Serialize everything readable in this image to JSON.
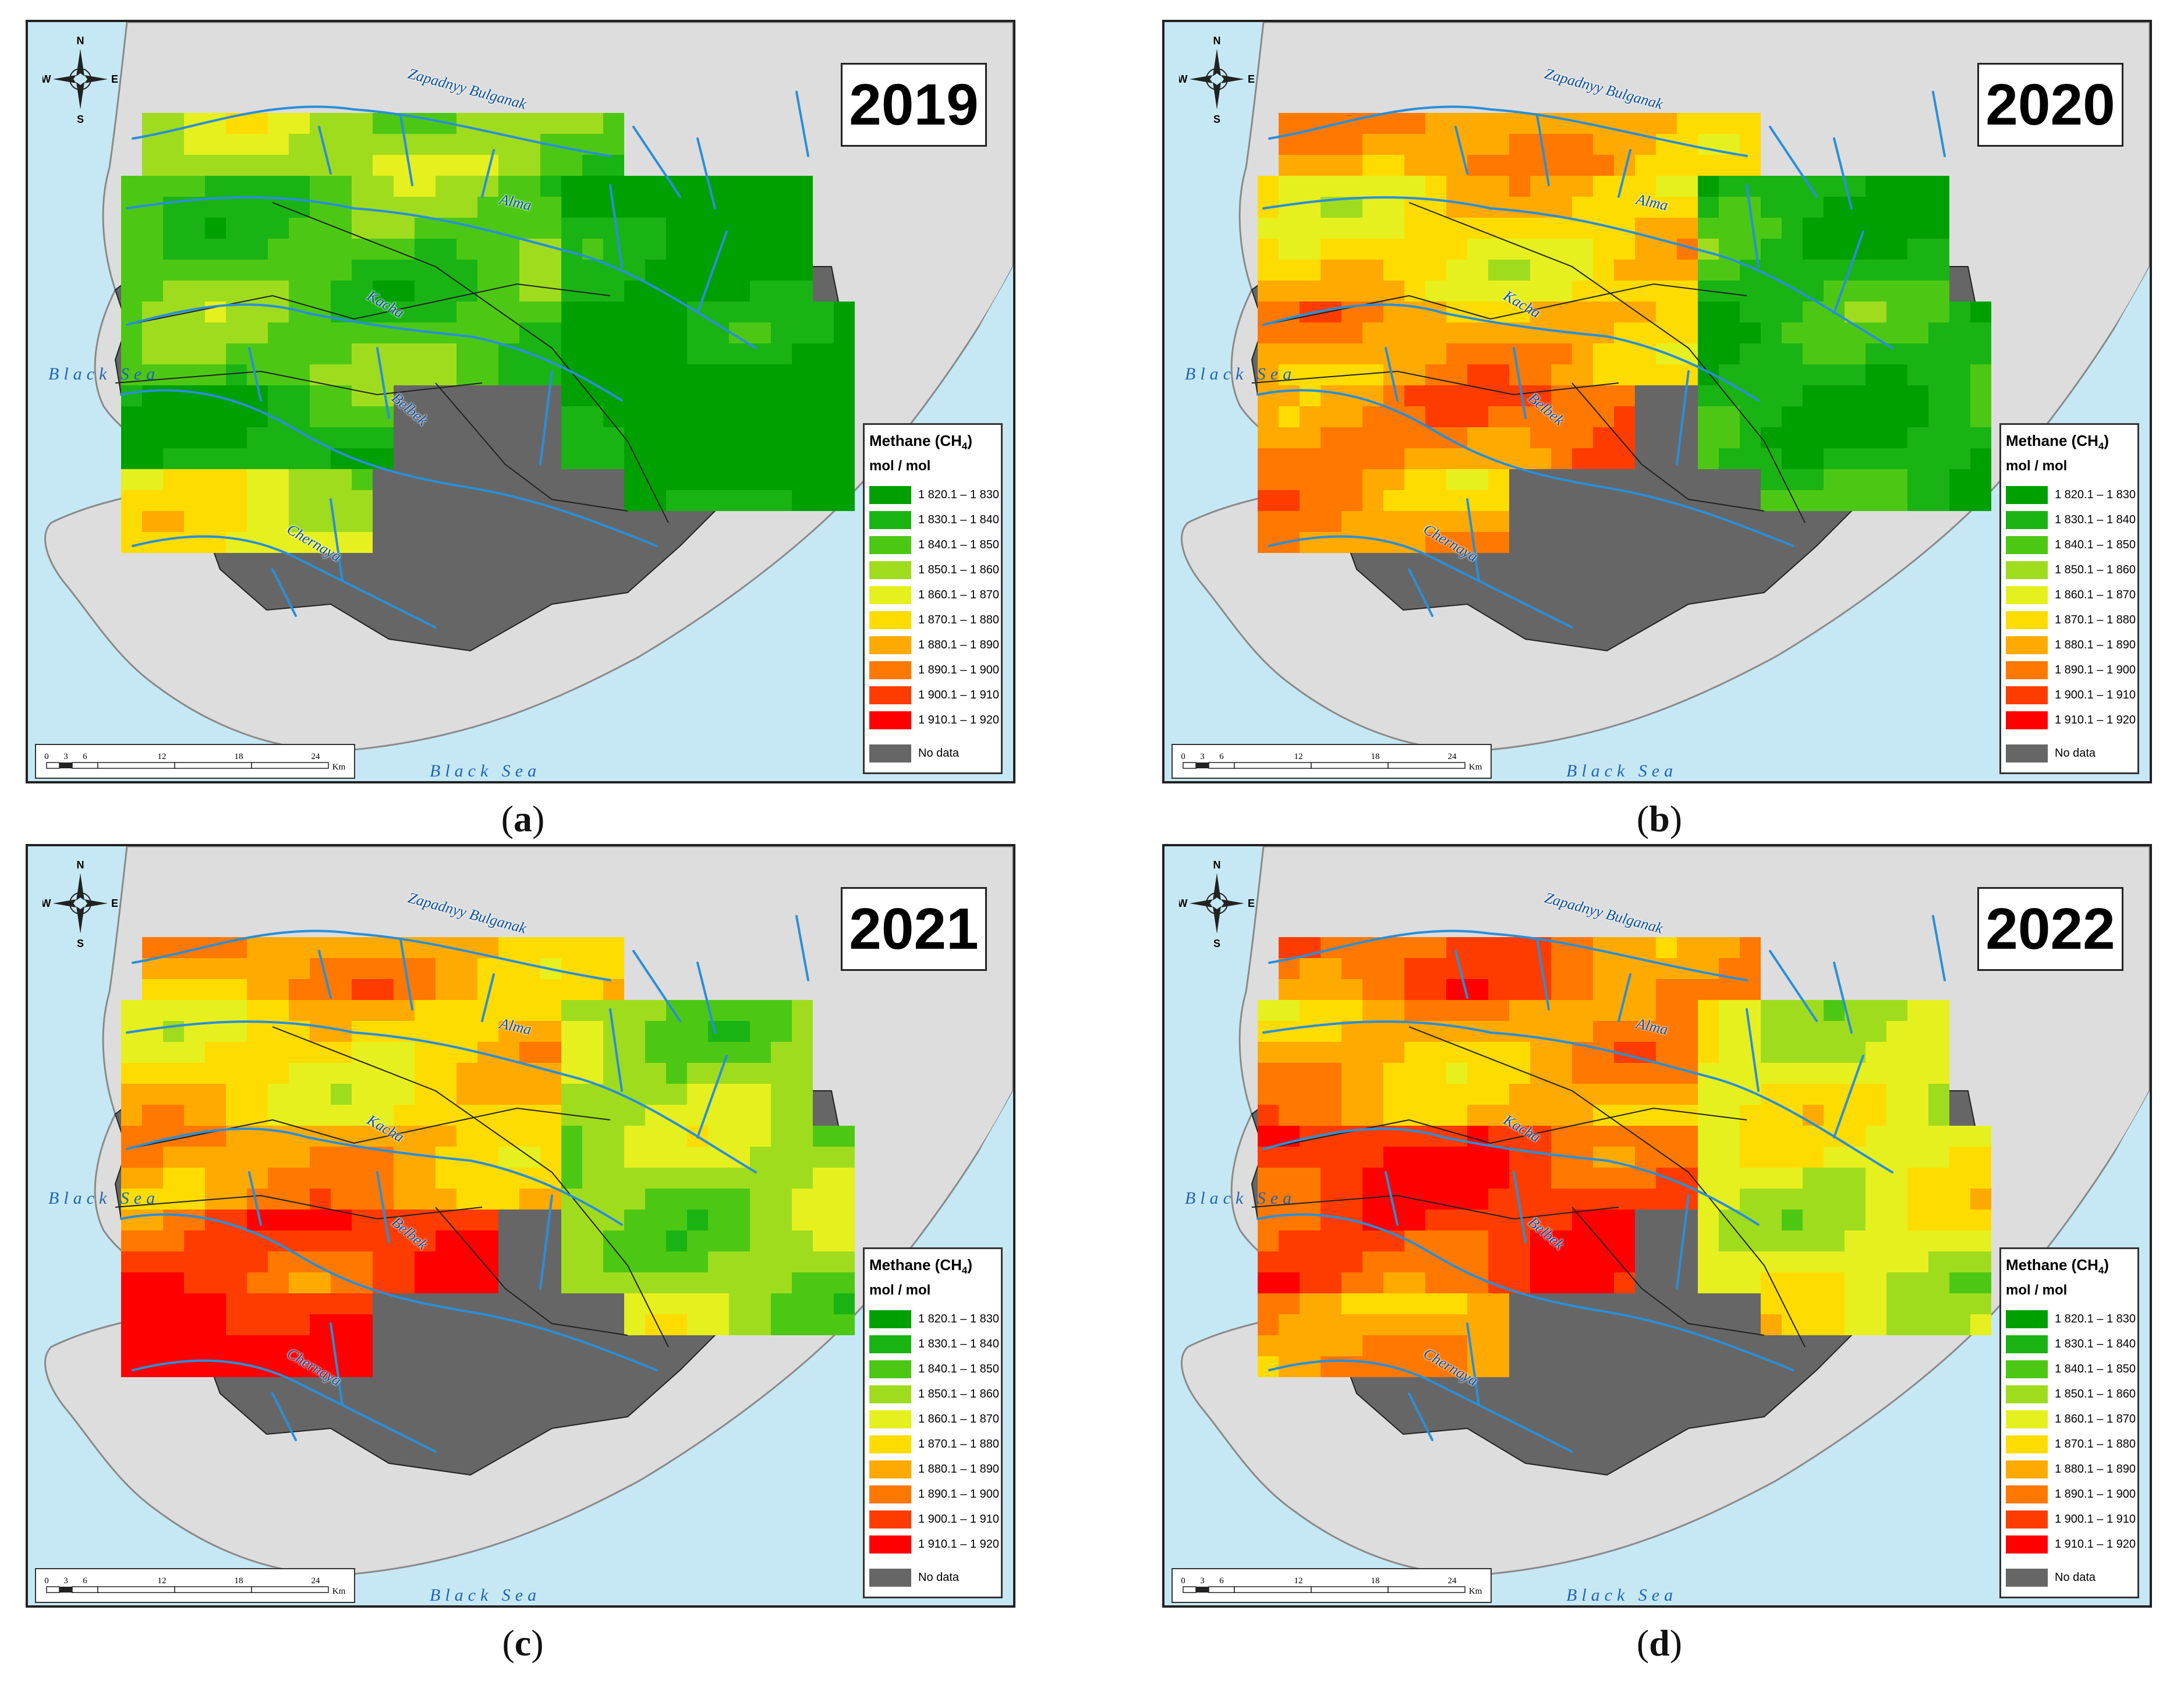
{
  "panels": [
    {
      "year": "2019",
      "caption": "a"
    },
    {
      "year": "2020",
      "caption": "b"
    },
    {
      "year": "2021",
      "caption": "c"
    },
    {
      "year": "2022",
      "caption": "d"
    }
  ],
  "legend": {
    "title": "Methane (CH",
    "title_sub": "4",
    "title_end": ")",
    "unit": "mol / mol",
    "classes": [
      {
        "label": "1 820.1 – 1 830",
        "color": "#00a000"
      },
      {
        "label": "1 830.1 – 1 840",
        "color": "#19b414"
      },
      {
        "label": "1 840.1 – 1 850",
        "color": "#4cc814"
      },
      {
        "label": "1 850.1 – 1 860",
        "color": "#a0dc1e"
      },
      {
        "label": "1 860.1 – 1 870",
        "color": "#e6f01e"
      },
      {
        "label": "1 870.1 – 1 880",
        "color": "#ffdc00"
      },
      {
        "label": "1 880.1 – 1 890",
        "color": "#ffaa00"
      },
      {
        "label": "1 890.1 – 1 900",
        "color": "#ff7800"
      },
      {
        "label": "1 900.1 – 1 910",
        "color": "#ff3c00"
      },
      {
        "label": "1 910.1 – 1 920",
        "color": "#ff0000"
      }
    ],
    "nodata_label": "No data",
    "nodata_color": "#666666"
  },
  "labels": {
    "sea": "Black Sea",
    "rivers": [
      "Zapadnyy Bulganak",
      "Alma",
      "Kacha",
      "Belbek",
      "Chernaya"
    ],
    "compass": {
      "n": "N",
      "s": "S",
      "e": "E",
      "w": "W"
    },
    "scale_ticks": [
      "0",
      "3",
      "6",
      "12",
      "18",
      "24"
    ],
    "scale_unit": "Km"
  },
  "colors": {
    "water": "#c6e8f5",
    "land": "#dddddd",
    "river": "#2a8fd8",
    "nodata": "#666666"
  }
}
